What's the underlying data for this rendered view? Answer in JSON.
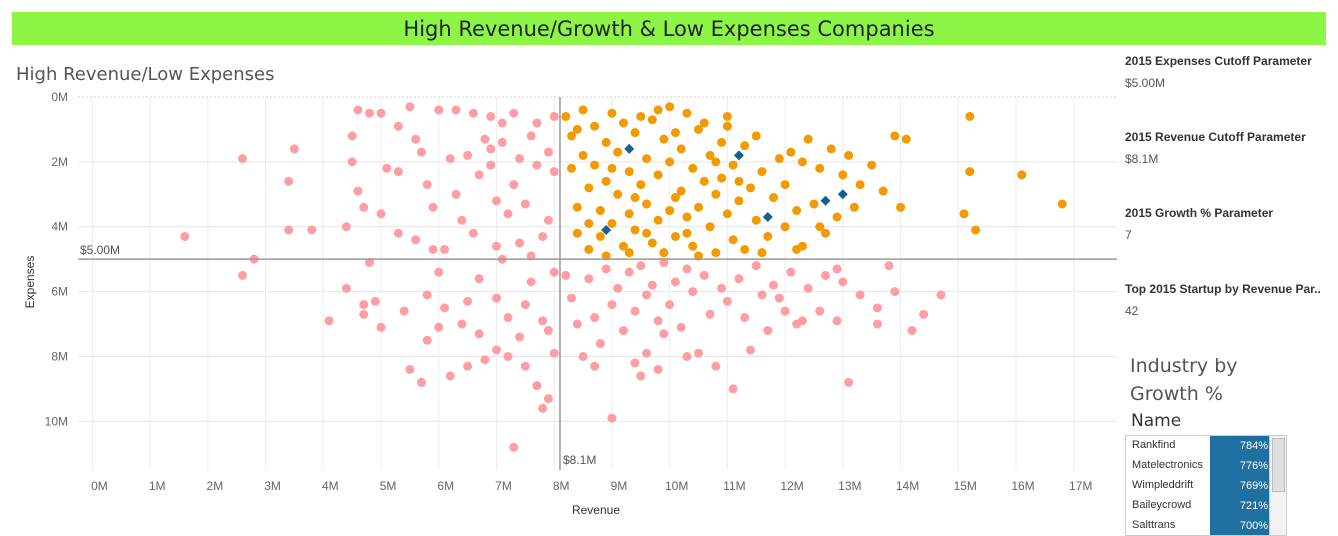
{
  "banner": {
    "title": "High Revenue/Growth & Low Expenses Companies"
  },
  "chart_title": "High Revenue/Low Expenses",
  "parameters": [
    {
      "label": "2015 Expenses Cutoff Parameter",
      "value": "$5.00M"
    },
    {
      "label": "2015 Revenue Cutoff Parameter",
      "value": "$8.1M"
    },
    {
      "label": "2015 Growth % Parameter",
      "value": "7"
    },
    {
      "label": "Top 2015 Startup by Revenue Par..",
      "value": "42"
    }
  ],
  "industry": {
    "title_line1": "Industry by",
    "title_line2": "Growth %",
    "column_header": "Name",
    "rows": [
      {
        "name": "Rankfind",
        "growth": "784%"
      },
      {
        "name": "Matelectronics",
        "growth": "776%"
      },
      {
        "name": "Wimpleddrift",
        "growth": "769%"
      },
      {
        "name": "Baileycrowd",
        "growth": "721%"
      },
      {
        "name": "Salttrans",
        "growth": "700%"
      }
    ]
  },
  "colors": {
    "banner": "#8cf545",
    "low_quadrant": "#fd9ea3",
    "target_quadrant": "#f29a00",
    "highlight": "#15628e",
    "reference_line": "#999999"
  },
  "chart_data": {
    "type": "scatter",
    "title": "High Revenue/Low Expenses",
    "xlabel": "Revenue",
    "ylabel": "Expenses",
    "x_ticks": [
      "0M",
      "1M",
      "2M",
      "3M",
      "4M",
      "5M",
      "6M",
      "7M",
      "8M",
      "9M",
      "10M",
      "11M",
      "12M",
      "13M",
      "14M",
      "15M",
      "16M",
      "17M"
    ],
    "y_ticks": [
      "0M",
      "2M",
      "4M",
      "6M",
      "8M",
      "10M"
    ],
    "xlim": [
      -0.25,
      17.75
    ],
    "ylim": [
      11.5,
      0
    ],
    "y_inverted": true,
    "grid": true,
    "reference_lines": [
      {
        "axis": "x",
        "value": 8.1,
        "label": "$8.1M"
      },
      {
        "axis": "y",
        "value": 5.0,
        "label": "$5.00M"
      }
    ],
    "series": [
      {
        "color": "#fd9ea3",
        "points": [
          [
            1.6,
            4.3
          ],
          [
            2.6,
            1.9
          ],
          [
            2.6,
            5.5
          ],
          [
            2.8,
            5.0
          ],
          [
            3.4,
            2.6
          ],
          [
            3.5,
            1.6
          ],
          [
            3.4,
            4.1
          ],
          [
            3.8,
            4.1
          ],
          [
            4.1,
            6.9
          ],
          [
            4.5,
            1.2
          ],
          [
            4.5,
            2.0
          ],
          [
            4.4,
            4.0
          ],
          [
            4.4,
            5.9
          ],
          [
            4.6,
            0.4
          ],
          [
            4.6,
            2.9
          ],
          [
            4.7,
            3.4
          ],
          [
            4.7,
            6.4
          ],
          [
            4.7,
            6.7
          ],
          [
            4.8,
            0.5
          ],
          [
            4.8,
            5.1
          ],
          [
            4.9,
            6.3
          ],
          [
            5.0,
            0.5
          ],
          [
            5.0,
            7.1
          ],
          [
            5.0,
            3.6
          ],
          [
            5.1,
            2.2
          ],
          [
            5.3,
            0.9
          ],
          [
            5.3,
            2.3
          ],
          [
            5.3,
            4.2
          ],
          [
            5.4,
            6.6
          ],
          [
            5.5,
            0.3
          ],
          [
            5.5,
            8.4
          ],
          [
            5.6,
            1.3
          ],
          [
            5.6,
            4.4
          ],
          [
            5.7,
            1.7
          ],
          [
            5.8,
            2.7
          ],
          [
            5.8,
            6.1
          ],
          [
            5.8,
            7.5
          ],
          [
            5.7,
            8.8
          ],
          [
            5.9,
            3.4
          ],
          [
            6.0,
            0.4
          ],
          [
            6.0,
            5.4
          ],
          [
            6.0,
            7.1
          ],
          [
            6.1,
            4.7
          ],
          [
            6.1,
            6.5
          ],
          [
            6.2,
            1.9
          ],
          [
            6.3,
            0.4
          ],
          [
            6.3,
            3.0
          ],
          [
            6.2,
            8.6
          ],
          [
            6.4,
            7.0
          ],
          [
            6.5,
            1.8
          ],
          [
            6.5,
            6.3
          ],
          [
            6.5,
            8.3
          ],
          [
            6.6,
            0.5
          ],
          [
            6.6,
            4.2
          ],
          [
            6.7,
            2.4
          ],
          [
            6.7,
            5.6
          ],
          [
            6.7,
            7.3
          ],
          [
            6.8,
            1.3
          ],
          [
            6.8,
            8.1
          ],
          [
            6.9,
            2.1
          ],
          [
            6.9,
            0.6
          ],
          [
            7.0,
            3.2
          ],
          [
            7.0,
            4.6
          ],
          [
            7.0,
            6.2
          ],
          [
            7.0,
            7.8
          ],
          [
            7.1,
            0.8
          ],
          [
            7.1,
            1.4
          ],
          [
            7.1,
            5.0
          ],
          [
            7.2,
            6.8
          ],
          [
            7.2,
            8.0
          ],
          [
            7.3,
            0.5
          ],
          [
            7.3,
            2.7
          ],
          [
            7.3,
            10.8
          ],
          [
            7.4,
            1.9
          ],
          [
            7.4,
            4.5
          ],
          [
            7.4,
            7.4
          ],
          [
            7.5,
            3.3
          ],
          [
            7.5,
            6.4
          ],
          [
            7.5,
            8.3
          ],
          [
            7.6,
            1.2
          ],
          [
            7.6,
            5.7
          ],
          [
            7.7,
            2.1
          ],
          [
            7.7,
            0.8
          ],
          [
            7.7,
            8.9
          ],
          [
            7.8,
            4.3
          ],
          [
            7.8,
            6.9
          ],
          [
            7.8,
            9.6
          ],
          [
            7.9,
            1.7
          ],
          [
            7.9,
            3.8
          ],
          [
            7.9,
            7.2
          ],
          [
            8.0,
            0.6
          ],
          [
            8.0,
            2.3
          ],
          [
            8.0,
            5.4
          ],
          [
            8.0,
            7.9
          ],
          [
            7.9,
            9.3
          ],
          [
            6.9,
            1.6
          ],
          [
            7.2,
            3.6
          ],
          [
            6.4,
            3.8
          ],
          [
            5.9,
            4.7
          ],
          [
            7.6,
            4.9
          ],
          [
            8.2,
            5.5
          ],
          [
            8.3,
            6.2
          ],
          [
            8.4,
            7.0
          ],
          [
            8.5,
            8.0
          ],
          [
            8.6,
            5.6
          ],
          [
            8.7,
            6.8
          ],
          [
            8.8,
            7.6
          ],
          [
            8.9,
            5.3
          ],
          [
            9.0,
            6.4
          ],
          [
            9.0,
            9.9
          ],
          [
            9.1,
            5.9
          ],
          [
            9.2,
            7.2
          ],
          [
            9.3,
            5.4
          ],
          [
            9.4,
            6.6
          ],
          [
            9.4,
            8.2
          ],
          [
            9.5,
            5.2
          ],
          [
            9.6,
            6.1
          ],
          [
            9.6,
            7.9
          ],
          [
            9.7,
            5.8
          ],
          [
            9.8,
            6.9
          ],
          [
            9.8,
            8.4
          ],
          [
            9.9,
            5.1
          ],
          [
            10.0,
            6.4
          ],
          [
            10.1,
            5.7
          ],
          [
            10.2,
            7.1
          ],
          [
            10.3,
            5.3
          ],
          [
            10.4,
            6.0
          ],
          [
            10.5,
            7.9
          ],
          [
            10.6,
            5.5
          ],
          [
            10.7,
            6.7
          ],
          [
            10.8,
            8.3
          ],
          [
            10.9,
            5.9
          ],
          [
            11.0,
            6.3
          ],
          [
            11.1,
            9.0
          ],
          [
            11.2,
            5.6
          ],
          [
            11.3,
            6.8
          ],
          [
            11.4,
            7.8
          ],
          [
            11.5,
            5.2
          ],
          [
            11.6,
            6.1
          ],
          [
            11.7,
            7.2
          ],
          [
            11.8,
            5.8
          ],
          [
            12.0,
            6.6
          ],
          [
            12.1,
            5.4
          ],
          [
            12.3,
            6.9
          ],
          [
            12.4,
            5.9
          ],
          [
            12.6,
            6.6
          ],
          [
            12.7,
            5.5
          ],
          [
            12.9,
            6.9
          ],
          [
            13.1,
            8.8
          ],
          [
            13.3,
            6.1
          ],
          [
            13.6,
            6.5
          ],
          [
            13.6,
            7.0
          ],
          [
            13.8,
            5.2
          ],
          [
            13.9,
            6.0
          ],
          [
            14.2,
            7.2
          ],
          [
            14.4,
            6.7
          ],
          [
            14.7,
            6.1
          ],
          [
            13.0,
            5.7
          ],
          [
            12.2,
            7.0
          ],
          [
            11.9,
            6.2
          ],
          [
            10.3,
            8.0
          ],
          [
            9.9,
            7.3
          ],
          [
            8.7,
            8.3
          ],
          [
            9.5,
            8.6
          ],
          [
            12.9,
            5.3
          ]
        ]
      },
      {
        "color": "#f29a00",
        "points": [
          [
            8.2,
            0.6
          ],
          [
            8.3,
            1.2
          ],
          [
            8.3,
            2.2
          ],
          [
            8.4,
            3.4
          ],
          [
            8.4,
            4.2
          ],
          [
            8.5,
            0.4
          ],
          [
            8.5,
            1.8
          ],
          [
            8.6,
            2.8
          ],
          [
            8.6,
            4.7
          ],
          [
            8.7,
            0.9
          ],
          [
            8.7,
            2.1
          ],
          [
            8.8,
            3.5
          ],
          [
            8.8,
            4.3
          ],
          [
            8.9,
            1.4
          ],
          [
            8.9,
            2.6
          ],
          [
            9.0,
            0.5
          ],
          [
            9.0,
            3.9
          ],
          [
            9.1,
            1.7
          ],
          [
            9.1,
            3.0
          ],
          [
            9.2,
            4.6
          ],
          [
            9.2,
            0.8
          ],
          [
            9.3,
            2.3
          ],
          [
            9.3,
            3.6
          ],
          [
            9.4,
            1.1
          ],
          [
            9.4,
            4.1
          ],
          [
            9.5,
            2.7
          ],
          [
            9.5,
            0.6
          ],
          [
            9.6,
            3.3
          ],
          [
            9.6,
            1.9
          ],
          [
            9.7,
            4.5
          ],
          [
            9.7,
            0.7
          ],
          [
            9.8,
            2.4
          ],
          [
            9.8,
            3.8
          ],
          [
            9.9,
            1.3
          ],
          [
            9.9,
            4.8
          ],
          [
            10.0,
            2.0
          ],
          [
            10.0,
            0.3
          ],
          [
            10.1,
            3.1
          ],
          [
            10.1,
            4.3
          ],
          [
            10.2,
            1.6
          ],
          [
            10.2,
            2.9
          ],
          [
            10.3,
            0.5
          ],
          [
            10.3,
            3.7
          ],
          [
            10.4,
            2.2
          ],
          [
            10.4,
            4.6
          ],
          [
            10.5,
            1.0
          ],
          [
            10.5,
            3.4
          ],
          [
            10.6,
            2.6
          ],
          [
            10.6,
            0.8
          ],
          [
            10.7,
            4.0
          ],
          [
            10.7,
            1.8
          ],
          [
            10.8,
            3.0
          ],
          [
            10.8,
            4.8
          ],
          [
            10.9,
            1.4
          ],
          [
            10.9,
            2.5
          ],
          [
            11.0,
            3.6
          ],
          [
            11.0,
            0.9
          ],
          [
            11.1,
            4.4
          ],
          [
            11.1,
            2.1
          ],
          [
            11.2,
            3.2
          ],
          [
            11.3,
            1.5
          ],
          [
            11.3,
            4.7
          ],
          [
            11.4,
            2.8
          ],
          [
            11.5,
            3.8
          ],
          [
            11.5,
            1.2
          ],
          [
            11.6,
            2.3
          ],
          [
            11.7,
            4.3
          ],
          [
            11.8,
            3.1
          ],
          [
            11.9,
            1.9
          ],
          [
            12.0,
            4.0
          ],
          [
            12.0,
            2.7
          ],
          [
            12.2,
            3.5
          ],
          [
            12.3,
            4.6
          ],
          [
            12.4,
            1.3
          ],
          [
            12.5,
            3.3
          ],
          [
            12.6,
            2.2
          ],
          [
            12.7,
            4.2
          ],
          [
            12.8,
            1.6
          ],
          [
            12.9,
            3.7
          ],
          [
            13.0,
            2.4
          ],
          [
            13.1,
            1.8
          ],
          [
            13.2,
            3.4
          ],
          [
            13.3,
            2.7
          ],
          [
            13.5,
            2.1
          ],
          [
            13.7,
            2.9
          ],
          [
            14.0,
            3.4
          ],
          [
            14.1,
            1.3
          ],
          [
            15.2,
            0.6
          ],
          [
            15.2,
            2.3
          ],
          [
            15.1,
            3.6
          ],
          [
            15.3,
            4.1
          ],
          [
            16.1,
            2.4
          ],
          [
            16.8,
            3.3
          ],
          [
            13.9,
            1.2
          ],
          [
            12.6,
            4.0
          ],
          [
            12.2,
            4.7
          ],
          [
            9.0,
            2.2
          ],
          [
            9.3,
            4.8
          ],
          [
            8.4,
            1.0
          ],
          [
            9.6,
            4.2
          ],
          [
            10.5,
            4.9
          ],
          [
            11.0,
            0.6
          ],
          [
            10.1,
            1.1
          ],
          [
            8.6,
            3.9
          ],
          [
            9.8,
            0.4
          ],
          [
            10.8,
            2.0
          ],
          [
            11.6,
            4.8
          ],
          [
            12.3,
            2.0
          ],
          [
            10.3,
            4.2
          ],
          [
            8.9,
            4.9
          ],
          [
            9.4,
            3.1
          ],
          [
            10.0,
            3.5
          ],
          [
            11.2,
            2.6
          ],
          [
            12.1,
            1.7
          ]
        ]
      },
      {
        "color": "#15628e",
        "points": [
          [
            9.3,
            1.6
          ],
          [
            11.2,
            1.8
          ],
          [
            8.9,
            4.1
          ],
          [
            11.7,
            3.7
          ],
          [
            12.7,
            3.2
          ],
          [
            13.0,
            3.0
          ]
        ]
      }
    ]
  }
}
